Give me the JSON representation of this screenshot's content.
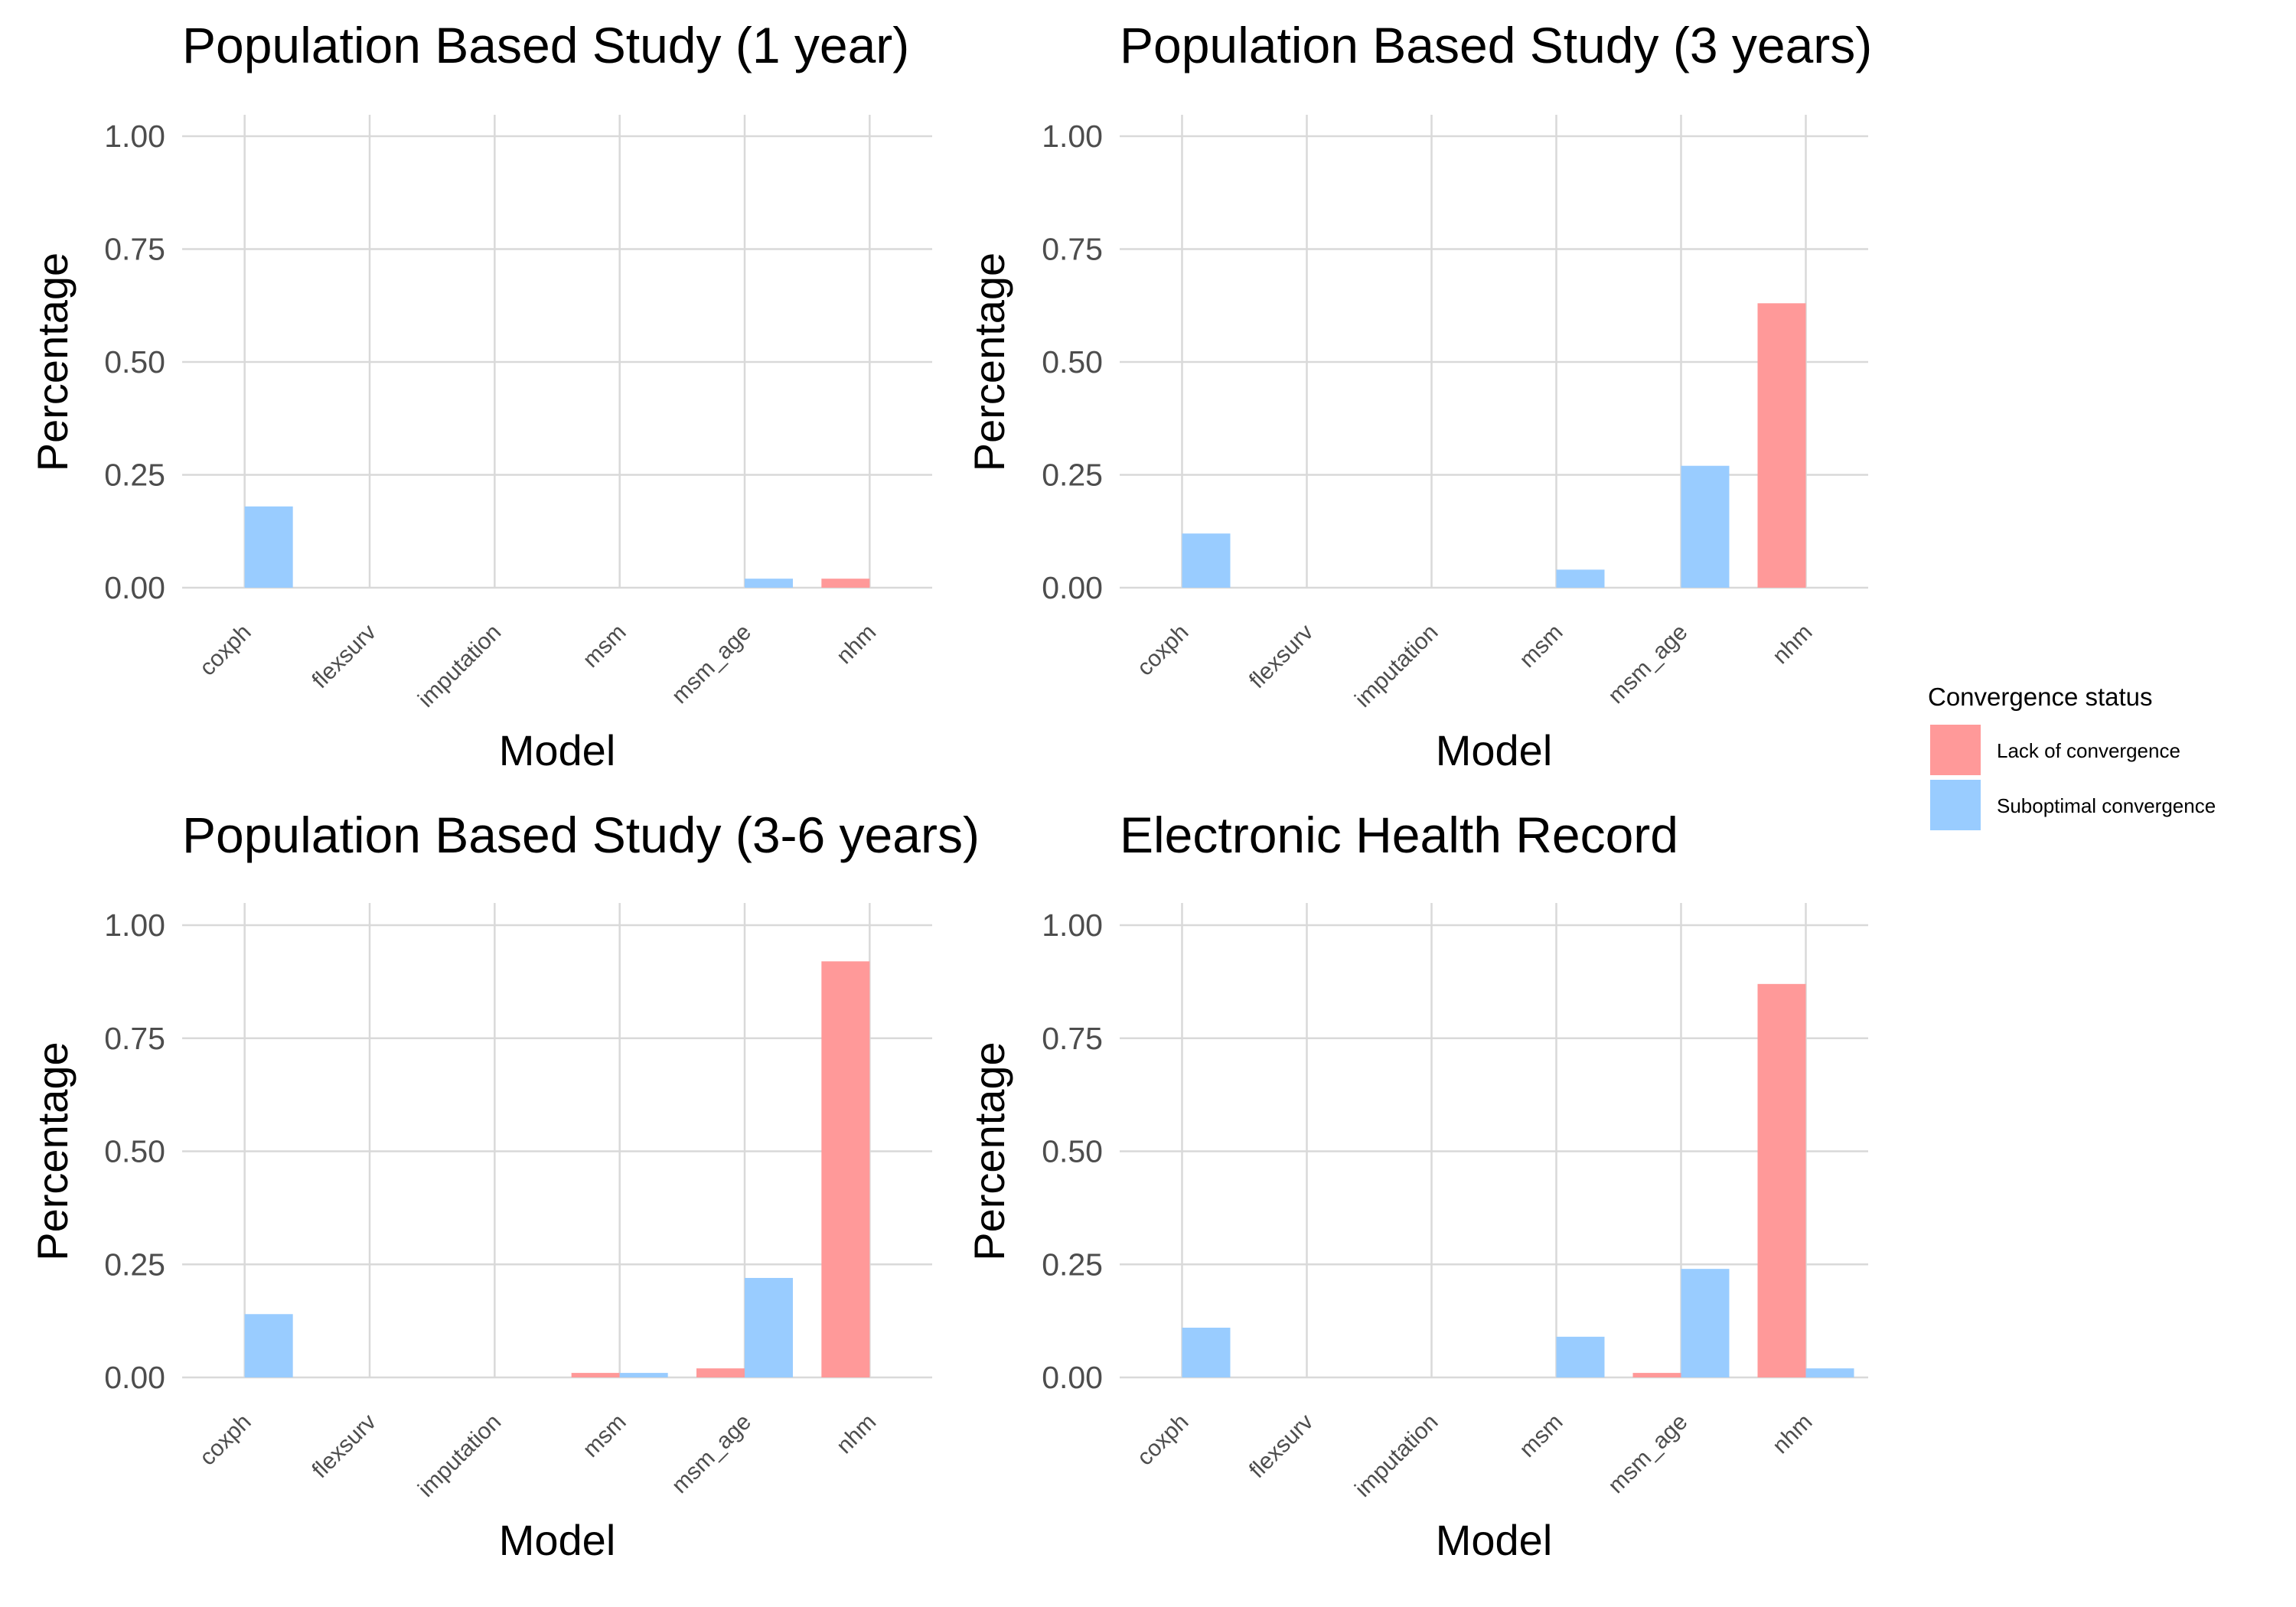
{
  "colors": {
    "lack": "#FF9999",
    "suboptimal": "#99CCFF"
  },
  "legend": {
    "title": "Convergence status",
    "items": [
      {
        "label": "Lack of convergence",
        "color": "#FF9999"
      },
      {
        "label": "Suboptimal convergence",
        "color": "#99CCFF"
      }
    ]
  },
  "chart_data": [
    {
      "type": "bar",
      "title": "Population Based Study (1 year)",
      "xlabel": "Model",
      "ylabel": "Percentage",
      "ylim": [
        0,
        1
      ],
      "yticks": [
        "0.00",
        "0.25",
        "0.50",
        "0.75",
        "1.00"
      ],
      "categories": [
        "coxph",
        "flexsurv",
        "imputation",
        "msm",
        "msm_age",
        "nhm"
      ],
      "series": [
        {
          "name": "Lack of convergence",
          "values": [
            0,
            0,
            0,
            0,
            0,
            0.02
          ]
        },
        {
          "name": "Suboptimal convergence",
          "values": [
            0.18,
            0,
            0,
            0,
            0.02,
            0
          ]
        }
      ],
      "grid": true
    },
    {
      "type": "bar",
      "title": "Population Based Study (3 years)",
      "xlabel": "Model",
      "ylabel": "Percentage",
      "ylim": [
        0,
        1
      ],
      "yticks": [
        "0.00",
        "0.25",
        "0.50",
        "0.75",
        "1.00"
      ],
      "categories": [
        "coxph",
        "flexsurv",
        "imputation",
        "msm",
        "msm_age",
        "nhm"
      ],
      "series": [
        {
          "name": "Lack of convergence",
          "values": [
            0,
            0,
            0,
            0,
            0,
            0.63
          ]
        },
        {
          "name": "Suboptimal convergence",
          "values": [
            0.12,
            0,
            0,
            0.04,
            0.27,
            0
          ]
        }
      ],
      "grid": true
    },
    {
      "type": "bar",
      "title": "Population Based Study (3-6 years)",
      "xlabel": "Model",
      "ylabel": "Percentage",
      "ylim": [
        0,
        1
      ],
      "yticks": [
        "0.00",
        "0.25",
        "0.50",
        "0.75",
        "1.00"
      ],
      "categories": [
        "coxph",
        "flexsurv",
        "imputation",
        "msm",
        "msm_age",
        "nhm"
      ],
      "series": [
        {
          "name": "Lack of convergence",
          "values": [
            0,
            0,
            0,
            0.01,
            0.02,
            0.92
          ]
        },
        {
          "name": "Suboptimal convergence",
          "values": [
            0.14,
            0,
            0,
            0.01,
            0.22,
            0
          ]
        }
      ],
      "grid": true
    },
    {
      "type": "bar",
      "title": "Electronic Health Record",
      "xlabel": "Model",
      "ylabel": "Percentage",
      "ylim": [
        0,
        1
      ],
      "yticks": [
        "0.00",
        "0.25",
        "0.50",
        "0.75",
        "1.00"
      ],
      "categories": [
        "coxph",
        "flexsurv",
        "imputation",
        "msm",
        "msm_age",
        "nhm"
      ],
      "series": [
        {
          "name": "Lack of convergence",
          "values": [
            0,
            0,
            0,
            0,
            0.01,
            0.87
          ]
        },
        {
          "name": "Suboptimal convergence",
          "values": [
            0.11,
            0,
            0,
            0.09,
            0.24,
            0.02
          ]
        }
      ],
      "grid": true
    }
  ]
}
